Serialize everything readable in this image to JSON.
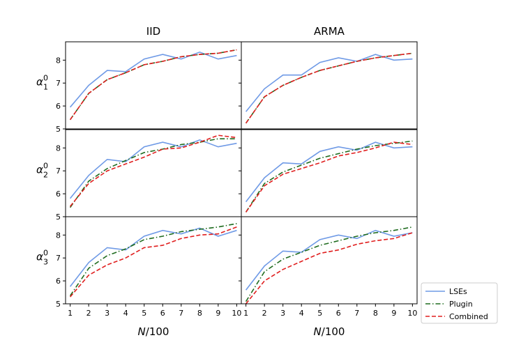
{
  "chart_data": {
    "type": "line",
    "x": [
      1,
      2,
      3,
      4,
      5,
      6,
      7,
      8,
      9,
      10
    ],
    "xticks": [
      "1",
      "2",
      "3",
      "4",
      "5",
      "6",
      "7",
      "8",
      "9",
      "10"
    ],
    "yticks": [
      "5",
      "6",
      "7",
      "8"
    ],
    "ylim": [
      5,
      8.8
    ],
    "xlim": [
      0.75,
      10.25
    ],
    "column_titles": [
      "IID",
      "ARMA"
    ],
    "row_labels": [
      {
        "base": "α",
        "sub": "1",
        "sup": "0"
      },
      {
        "base": "α",
        "sub": "2",
        "sup": "0"
      },
      {
        "base": "α",
        "sub": "3",
        "sup": "0"
      }
    ],
    "xlabel": "N/100",
    "legend": [
      {
        "name": "LSEs",
        "color": "#6f9ae6",
        "dash": "solid"
      },
      {
        "name": "Plugin",
        "color": "#1e6b1e",
        "dash": "dashdot"
      },
      {
        "name": "Combined",
        "color": "#e01e1e",
        "dash": "dashed"
      }
    ],
    "panels": [
      {
        "row": 0,
        "col": 0,
        "series": [
          {
            "name": "LSEs",
            "values": [
              5.95,
              6.9,
              7.55,
              7.5,
              8.05,
              8.25,
              8.05,
              8.35,
              8.05,
              8.2
            ]
          },
          {
            "name": "Plugin",
            "values": [
              5.4,
              6.55,
              7.15,
              7.45,
              7.8,
              7.95,
              8.15,
              8.25,
              8.3,
              8.45
            ]
          },
          {
            "name": "Combined",
            "values": [
              5.4,
              6.55,
              7.15,
              7.45,
              7.8,
              7.95,
              8.15,
              8.25,
              8.3,
              8.45
            ]
          }
        ]
      },
      {
        "row": 0,
        "col": 1,
        "series": [
          {
            "name": "LSEs",
            "values": [
              5.75,
              6.75,
              7.35,
              7.35,
              7.9,
              8.1,
              7.95,
              8.25,
              8.0,
              8.05
            ]
          },
          {
            "name": "Plugin",
            "values": [
              5.25,
              6.4,
              6.9,
              7.25,
              7.55,
              7.75,
              7.95,
              8.1,
              8.2,
              8.3
            ]
          },
          {
            "name": "Combined",
            "values": [
              5.25,
              6.4,
              6.9,
              7.25,
              7.55,
              7.75,
              7.95,
              8.1,
              8.2,
              8.3
            ]
          }
        ]
      },
      {
        "row": 1,
        "col": 0,
        "series": [
          {
            "name": "LSEs",
            "values": [
              5.8,
              6.8,
              7.5,
              7.4,
              8.05,
              8.25,
              8.05,
              8.35,
              8.05,
              8.2
            ]
          },
          {
            "name": "Plugin",
            "values": [
              5.4,
              6.55,
              7.1,
              7.45,
              7.8,
              7.95,
              8.15,
              8.25,
              8.4,
              8.4
            ]
          },
          {
            "name": "Combined",
            "values": [
              5.45,
              6.45,
              7.0,
              7.3,
              7.6,
              7.95,
              8.0,
              8.25,
              8.55,
              8.45
            ]
          }
        ]
      },
      {
        "row": 1,
        "col": 1,
        "series": [
          {
            "name": "LSEs",
            "values": [
              5.65,
              6.7,
              7.35,
              7.3,
              7.85,
              8.05,
              7.9,
              8.25,
              8.0,
              8.05
            ]
          },
          {
            "name": "Plugin",
            "values": [
              5.2,
              6.45,
              6.95,
              7.25,
              7.55,
              7.75,
              7.95,
              8.1,
              8.2,
              8.3
            ]
          },
          {
            "name": "Combined",
            "values": [
              5.2,
              6.35,
              6.85,
              7.1,
              7.35,
              7.65,
              7.8,
              8.0,
              8.25,
              8.15
            ]
          }
        ]
      },
      {
        "row": 2,
        "col": 0,
        "series": [
          {
            "name": "LSEs",
            "values": [
              5.75,
              6.8,
              7.45,
              7.35,
              7.95,
              8.2,
              8.05,
              8.3,
              7.95,
              8.2
            ]
          },
          {
            "name": "Plugin",
            "values": [
              5.35,
              6.55,
              7.1,
              7.4,
              7.8,
              7.95,
              8.15,
              8.25,
              8.35,
              8.5
            ]
          },
          {
            "name": "Combined",
            "values": [
              5.3,
              6.25,
              6.7,
              7.0,
              7.45,
              7.55,
              7.85,
              8.0,
              8.05,
              8.35
            ]
          }
        ]
      },
      {
        "row": 2,
        "col": 1,
        "series": [
          {
            "name": "LSEs",
            "values": [
              5.6,
              6.65,
              7.3,
              7.25,
              7.8,
              8.0,
              7.85,
              8.2,
              7.95,
              8.1
            ]
          },
          {
            "name": "Plugin",
            "values": [
              5.1,
              6.4,
              6.95,
              7.25,
              7.55,
              7.75,
              7.95,
              8.1,
              8.2,
              8.35
            ]
          },
          {
            "name": "Combined",
            "values": [
              5.0,
              6.0,
              6.5,
              6.85,
              7.2,
              7.35,
              7.6,
              7.75,
              7.85,
              8.1
            ]
          }
        ]
      }
    ]
  }
}
